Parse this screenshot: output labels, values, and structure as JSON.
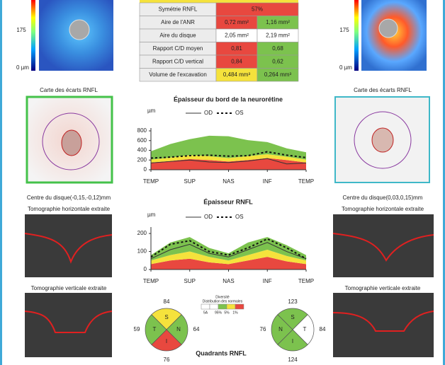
{
  "maps": {
    "scale_top": "175",
    "scale_bottom": "0 µm"
  },
  "table": {
    "rows": [
      {
        "label": "Symétrie RNFL",
        "cells": [
          {
            "text": "57%",
            "color": "#e8483f"
          }
        ]
      },
      {
        "label": "Aire de l'ANR",
        "cells": [
          {
            "text": "0,72 mm²",
            "color": "#e8483f"
          },
          {
            "text": "1,16 mm²",
            "color": "#7cc24e"
          }
        ]
      },
      {
        "label": "Aire du disque",
        "cells": [
          {
            "text": "2,05 mm²",
            "color": "#ffffff"
          },
          {
            "text": "2,19 mm²",
            "color": "#ffffff"
          }
        ]
      },
      {
        "label": "Rapport C/D moyen",
        "cells": [
          {
            "text": "0,81",
            "color": "#e8483f"
          },
          {
            "text": "0,68",
            "color": "#7cc24e"
          }
        ]
      },
      {
        "label": "Rapport C/D vertical",
        "cells": [
          {
            "text": "0,84",
            "color": "#e8483f"
          },
          {
            "text": "0,62",
            "color": "#7cc24e"
          }
        ]
      },
      {
        "label": "Volume de l'excavation",
        "cells": [
          {
            "text": "0,484 mm³",
            "color": "#f5e23c"
          },
          {
            "text": "0,264 mm³",
            "color": "#7cc24e"
          }
        ]
      }
    ]
  },
  "deviation_title": "Carte des écarts RNFL",
  "disc_center": {
    "od": "Centre du disque(-0,15,-0,12)mm",
    "os": "Centre du disque(0,03,0,15)mm"
  },
  "tomo": {
    "horizontal": "Tomographie horizontale extraite",
    "vertical": "Tomographie verticale extraite"
  },
  "chart_data": [
    {
      "type": "line",
      "title": "Épaisseur du bord de la neurorétine",
      "y_unit": "µm",
      "x": [
        0,
        1,
        2,
        3,
        4,
        5,
        6,
        7,
        8
      ],
      "xlim": [
        0,
        8
      ],
      "xticks": [
        {
          "value": 0,
          "label": "TEMP"
        },
        {
          "value": 2,
          "label": "SUP"
        },
        {
          "value": 4,
          "label": "NAS"
        },
        {
          "value": 6,
          "label": "INF"
        },
        {
          "value": 8,
          "label": "TEMP"
        }
      ],
      "ylim": [
        0,
        800
      ],
      "yticks": [
        0,
        200,
        400,
        600,
        800
      ],
      "bands": [
        {
          "name": "1%",
          "color": "#e8483f",
          "values": [
            150,
            180,
            220,
            200,
            170,
            200,
            240,
            200,
            150
          ]
        },
        {
          "name": "5%",
          "color": "#f5e23c",
          "values": [
            60,
            70,
            80,
            80,
            70,
            80,
            80,
            70,
            60
          ]
        },
        {
          "name": "95%",
          "color": "#7cc24e",
          "values": [
            170,
            280,
            330,
            420,
            450,
            330,
            250,
            170,
            150
          ]
        }
      ],
      "series": [
        {
          "name": "OD",
          "color": "#333333",
          "dash": false,
          "values": [
            140,
            170,
            200,
            160,
            150,
            180,
            230,
            120,
            140
          ]
        },
        {
          "name": "OS",
          "color": "#111111",
          "dash": true,
          "values": [
            240,
            260,
            290,
            300,
            280,
            290,
            370,
            300,
            250
          ]
        }
      ]
    },
    {
      "type": "line",
      "title": "Épaisseur RNFL",
      "y_unit": "µm",
      "x": [
        0,
        1,
        2,
        3,
        4,
        5,
        6,
        7,
        8
      ],
      "xlim": [
        0,
        8
      ],
      "xticks": [
        {
          "value": 0,
          "label": "TEMP"
        },
        {
          "value": 2,
          "label": "SUP"
        },
        {
          "value": 4,
          "label": "NAS"
        },
        {
          "value": 6,
          "label": "INF"
        },
        {
          "value": 8,
          "label": "TEMP"
        }
      ],
      "ylim": [
        0,
        220
      ],
      "yticks": [
        0,
        100,
        200
      ],
      "bands": [
        {
          "name": "1%",
          "color": "#e8483f",
          "values": [
            30,
            50,
            60,
            40,
            30,
            50,
            70,
            45,
            30
          ]
        },
        {
          "name": "5%",
          "color": "#f5e23c",
          "values": [
            20,
            30,
            40,
            30,
            20,
            30,
            40,
            30,
            20
          ]
        },
        {
          "name": "95%",
          "color": "#7cc24e",
          "values": [
            30,
            70,
            80,
            50,
            40,
            70,
            70,
            60,
            30
          ]
        }
      ],
      "series": [
        {
          "name": "OD",
          "color": "#333333",
          "dash": false,
          "values": [
            60,
            110,
            140,
            90,
            70,
            110,
            150,
            100,
            60
          ]
        },
        {
          "name": "OS",
          "color": "#111111",
          "dash": true,
          "values": [
            70,
            140,
            160,
            100,
            80,
            120,
            170,
            120,
            60
          ]
        }
      ]
    }
  ],
  "norm_legend": {
    "title": "Diversité",
    "subtitle": "Distribution des normales",
    "labels": [
      "5A",
      "95%",
      "5%",
      "1%"
    ],
    "colors": [
      "#ffffff",
      "#ffffff",
      "#7cc24e",
      "#f5e23c",
      "#e8483f"
    ]
  },
  "quadrants": {
    "title": "Quadrants RNFL",
    "od": [
      {
        "letter": "S",
        "value": 84,
        "color": "#f5e23c"
      },
      {
        "letter": "N",
        "value": 64,
        "color": "#7cc24e"
      },
      {
        "letter": "I",
        "value": 76,
        "color": "#e8483f"
      },
      {
        "letter": "T",
        "value": 59,
        "color": "#7cc24e"
      }
    ],
    "os": [
      {
        "letter": "S",
        "value": 123,
        "color": "#7cc24e"
      },
      {
        "letter": "T",
        "value": 84,
        "color": "#ffffff"
      },
      {
        "letter": "I",
        "value": 124,
        "color": "#7cc24e"
      },
      {
        "letter": "N",
        "value": 76,
        "color": "#7cc24e"
      }
    ]
  }
}
